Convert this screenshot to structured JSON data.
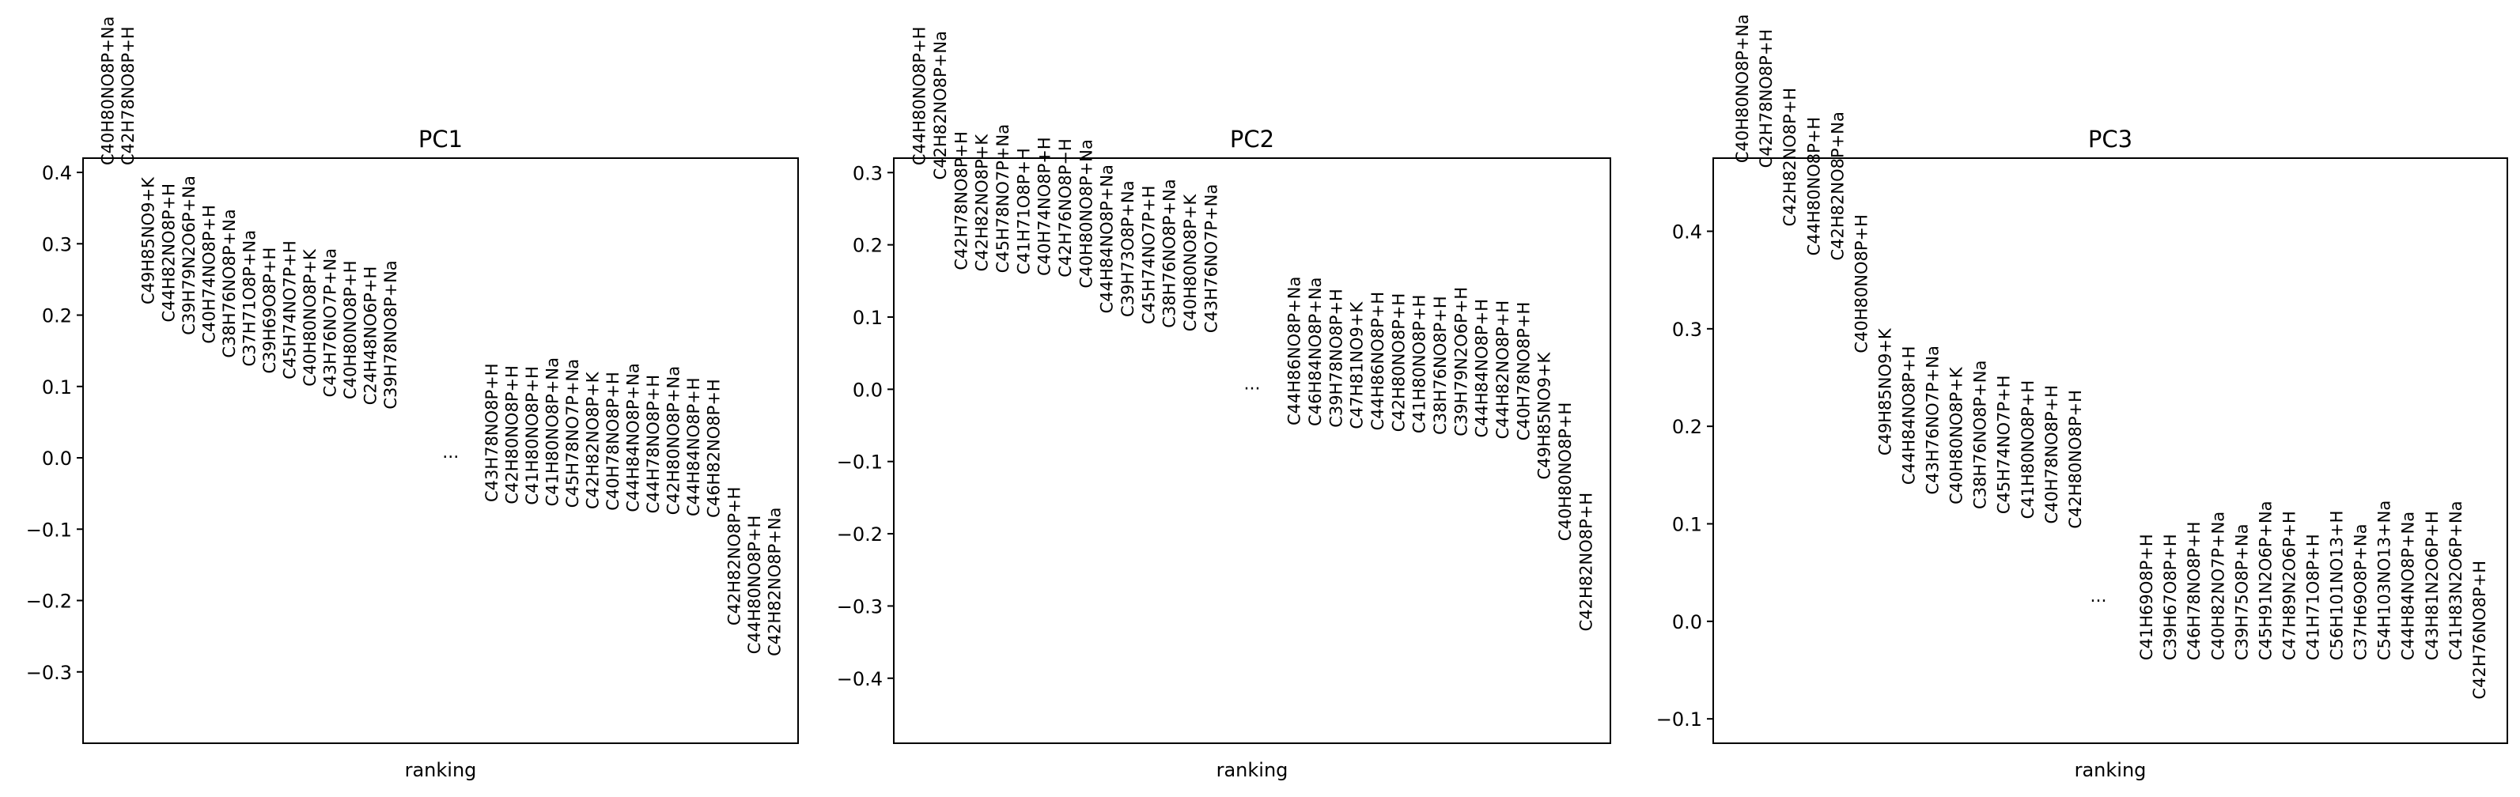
{
  "chart_data": [
    {
      "type": "scatter",
      "title": "PC1",
      "xlabel": "ranking",
      "ylabel": "",
      "ylim": [
        -0.4,
        0.42
      ],
      "yticks": [
        -0.3,
        -0.2,
        -0.1,
        0.0,
        0.1,
        0.2,
        0.3,
        0.4
      ],
      "ytick_labels": [
        "−0.3",
        "−0.2",
        "−0.1",
        "0.0",
        "0.1",
        "0.2",
        "0.3",
        "0.4"
      ],
      "ellipsis": "...",
      "ellipsis_rank": 17,
      "ellipsis_value": 0.0,
      "points": [
        {
          "rank": 0,
          "label": "C40H80NO8P+Na",
          "value": 0.41
        },
        {
          "rank": 1,
          "label": "C42H78NO8P+H",
          "value": 0.41
        },
        {
          "rank": 2,
          "label": "C49H85NO9+K",
          "value": 0.215
        },
        {
          "rank": 3,
          "label": "C44H82NO8P+H",
          "value": 0.19
        },
        {
          "rank": 4,
          "label": "C39H79N2O6P+Na",
          "value": 0.172
        },
        {
          "rank": 5,
          "label": "C40H74NO8P+H",
          "value": 0.16
        },
        {
          "rank": 6,
          "label": "C38H76NO8P+Na",
          "value": 0.14
        },
        {
          "rank": 7,
          "label": "C37H71O8P+Na",
          "value": 0.128
        },
        {
          "rank": 8,
          "label": "C39H69O8P+H",
          "value": 0.118
        },
        {
          "rank": 9,
          "label": "C45H74NO7P+H",
          "value": 0.11
        },
        {
          "rank": 10,
          "label": "C40H80NO8P+K",
          "value": 0.1
        },
        {
          "rank": 11,
          "label": "C43H76NO7P+Na",
          "value": 0.085
        },
        {
          "rank": 12,
          "label": "C40H80NO8P+H",
          "value": 0.082
        },
        {
          "rank": 13,
          "label": "C24H48NO6P+H",
          "value": 0.074
        },
        {
          "rank": 14,
          "label": "C39H78NO8P+Na",
          "value": 0.068
        },
        {
          "rank": 19,
          "label": "C43H78NO8P+H",
          "value": -0.062
        },
        {
          "rank": 20,
          "label": "C42H80NO8P+H",
          "value": -0.065
        },
        {
          "rank": 21,
          "label": "C41H80NO8P+H",
          "value": -0.066
        },
        {
          "rank": 22,
          "label": "C41H80NO8P+Na",
          "value": -0.068
        },
        {
          "rank": 23,
          "label": "C45H78NO7P+Na",
          "value": -0.07
        },
        {
          "rank": 24,
          "label": "C42H82NO8P+K",
          "value": -0.072
        },
        {
          "rank": 25,
          "label": "C40H78NO8P+H",
          "value": -0.074
        },
        {
          "rank": 26,
          "label": "C44H84NO8P+Na",
          "value": -0.076
        },
        {
          "rank": 27,
          "label": "C44H78NO8P+H",
          "value": -0.078
        },
        {
          "rank": 28,
          "label": "C42H80NO8P+Na",
          "value": -0.08
        },
        {
          "rank": 29,
          "label": "C44H84NO8P+H",
          "value": -0.082
        },
        {
          "rank": 30,
          "label": "C46H82NO8P+H",
          "value": -0.084
        },
        {
          "rank": 31,
          "label": "C42H82NO8P+H",
          "value": -0.235
        },
        {
          "rank": 32,
          "label": "C44H80NO8P+H",
          "value": -0.275
        },
        {
          "rank": 33,
          "label": "C42H82NO8P+Na",
          "value": -0.278
        }
      ]
    },
    {
      "type": "scatter",
      "title": "PC2",
      "xlabel": "ranking",
      "ylabel": "",
      "ylim": [
        -0.49,
        0.32
      ],
      "yticks": [
        -0.4,
        -0.3,
        -0.2,
        -0.1,
        0.0,
        0.1,
        0.2,
        0.3
      ],
      "ytick_labels": [
        "−0.4",
        "−0.3",
        "−0.2",
        "−0.1",
        "0.0",
        "0.1",
        "0.2",
        "0.3"
      ],
      "ellipsis": "...",
      "ellipsis_rank": 16,
      "ellipsis_value": 0.0,
      "points": [
        {
          "rank": 0,
          "label": "C44H80NO8P+H",
          "value": 0.31
        },
        {
          "rank": 1,
          "label": "C42H82NO8P+Na",
          "value": 0.29
        },
        {
          "rank": 2,
          "label": "C42H78NO8P+H",
          "value": 0.165
        },
        {
          "rank": 3,
          "label": "C42H82NO8P+K",
          "value": 0.163
        },
        {
          "rank": 4,
          "label": "C45H78NO7P+Na",
          "value": 0.161
        },
        {
          "rank": 5,
          "label": "C41H71O8P+H",
          "value": 0.159
        },
        {
          "rank": 6,
          "label": "C40H74NO8P+H",
          "value": 0.157
        },
        {
          "rank": 7,
          "label": "C42H76NO8P+H",
          "value": 0.155
        },
        {
          "rank": 8,
          "label": "C40H80NO8P+Na",
          "value": 0.14
        },
        {
          "rank": 9,
          "label": "C44H84NO8P+Na",
          "value": 0.105
        },
        {
          "rank": 10,
          "label": "C39H73O8P+Na",
          "value": 0.1
        },
        {
          "rank": 11,
          "label": "C45H74NO7P+H",
          "value": 0.09
        },
        {
          "rank": 12,
          "label": "C38H76NO8P+Na",
          "value": 0.085
        },
        {
          "rank": 13,
          "label": "C40H80NO8P+K",
          "value": 0.08
        },
        {
          "rank": 14,
          "label": "C43H76NO7P+Na",
          "value": 0.078
        },
        {
          "rank": 18,
          "label": "C44H86NO8P+Na",
          "value": -0.05
        },
        {
          "rank": 19,
          "label": "C46H84NO8P+Na",
          "value": -0.051
        },
        {
          "rank": 20,
          "label": "C39H78NO8P+H",
          "value": -0.053
        },
        {
          "rank": 21,
          "label": "C47H81NO9+K",
          "value": -0.055
        },
        {
          "rank": 22,
          "label": "C44H86NO8P+H",
          "value": -0.057
        },
        {
          "rank": 23,
          "label": "C42H80NO8P+H",
          "value": -0.059
        },
        {
          "rank": 24,
          "label": "C41H80NO8P+H",
          "value": -0.061
        },
        {
          "rank": 25,
          "label": "C38H76NO8P+H",
          "value": -0.063
        },
        {
          "rank": 26,
          "label": "C39H79N2O6P+H",
          "value": -0.065
        },
        {
          "rank": 27,
          "label": "C44H84NO8P+H",
          "value": -0.067
        },
        {
          "rank": 28,
          "label": "C44H82NO8P+H",
          "value": -0.069
        },
        {
          "rank": 29,
          "label": "C40H78NO8P+H",
          "value": -0.071
        },
        {
          "rank": 30,
          "label": "C49H85NO9+K",
          "value": -0.125
        },
        {
          "rank": 31,
          "label": "C40H80NO8P+H",
          "value": -0.21
        },
        {
          "rank": 32,
          "label": "C42H82NO8P+H",
          "value": -0.335
        }
      ]
    },
    {
      "type": "scatter",
      "title": "PC3",
      "xlabel": "ranking",
      "ylabel": "",
      "ylim": [
        -0.125,
        0.475
      ],
      "yticks": [
        -0.1,
        0.0,
        0.1,
        0.2,
        0.3,
        0.4
      ],
      "ytick_labels": [
        "−0.1",
        "0.0",
        "0.1",
        "0.2",
        "0.3",
        "0.4"
      ],
      "ellipsis": "...",
      "ellipsis_rank": 15,
      "ellipsis_value": 0.02,
      "points": [
        {
          "rank": 0,
          "label": "C40H80NO8P+Na",
          "value": 0.47
        },
        {
          "rank": 1,
          "label": "C42H78NO8P+H",
          "value": 0.465
        },
        {
          "rank": 2,
          "label": "C42H82NO8P+H",
          "value": 0.405
        },
        {
          "rank": 3,
          "label": "C44H80NO8P+H",
          "value": 0.375
        },
        {
          "rank": 4,
          "label": "C42H82NO8P+Na",
          "value": 0.37
        },
        {
          "rank": 5,
          "label": "C40H80NO8P+H",
          "value": 0.275
        },
        {
          "rank": 6,
          "label": "C49H85NO9+K",
          "value": 0.17
        },
        {
          "rank": 7,
          "label": "C44H84NO8P+H",
          "value": 0.14
        },
        {
          "rank": 8,
          "label": "C43H76NO7P+Na",
          "value": 0.13
        },
        {
          "rank": 9,
          "label": "C40H80NO8P+K",
          "value": 0.12
        },
        {
          "rank": 10,
          "label": "C38H76NO8P+Na",
          "value": 0.115
        },
        {
          "rank": 11,
          "label": "C45H74NO7P+H",
          "value": 0.11
        },
        {
          "rank": 12,
          "label": "C41H80NO8P+H",
          "value": 0.105
        },
        {
          "rank": 13,
          "label": "C40H78NO8P+H",
          "value": 0.1
        },
        {
          "rank": 14,
          "label": "C42H80NO8P+H",
          "value": 0.095
        },
        {
          "rank": 17,
          "label": "C41H69O8P+H",
          "value": -0.04
        },
        {
          "rank": 18,
          "label": "C39H67O8P+H",
          "value": -0.04
        },
        {
          "rank": 19,
          "label": "C46H78NO8P+H",
          "value": -0.04
        },
        {
          "rank": 20,
          "label": "C40H82NO7P+Na",
          "value": -0.04
        },
        {
          "rank": 21,
          "label": "C39H75O8P+Na",
          "value": -0.04
        },
        {
          "rank": 22,
          "label": "C45H91N2O6P+Na",
          "value": -0.04
        },
        {
          "rank": 23,
          "label": "C47H89N2O6P+H",
          "value": -0.04
        },
        {
          "rank": 24,
          "label": "C41H71O8P+H",
          "value": -0.04
        },
        {
          "rank": 25,
          "label": "C56H101NO13+H",
          "value": -0.04
        },
        {
          "rank": 26,
          "label": "C37H69O8P+Na",
          "value": -0.04
        },
        {
          "rank": 27,
          "label": "C54H103NO13+Na",
          "value": -0.04
        },
        {
          "rank": 28,
          "label": "C44H84NO8P+Na",
          "value": -0.04
        },
        {
          "rank": 29,
          "label": "C43H81N2O6P+H",
          "value": -0.04
        },
        {
          "rank": 30,
          "label": "C41H83N2O6P+Na",
          "value": -0.04
        },
        {
          "rank": 31,
          "label": "C42H76NO8P+H",
          "value": -0.08
        }
      ]
    }
  ]
}
